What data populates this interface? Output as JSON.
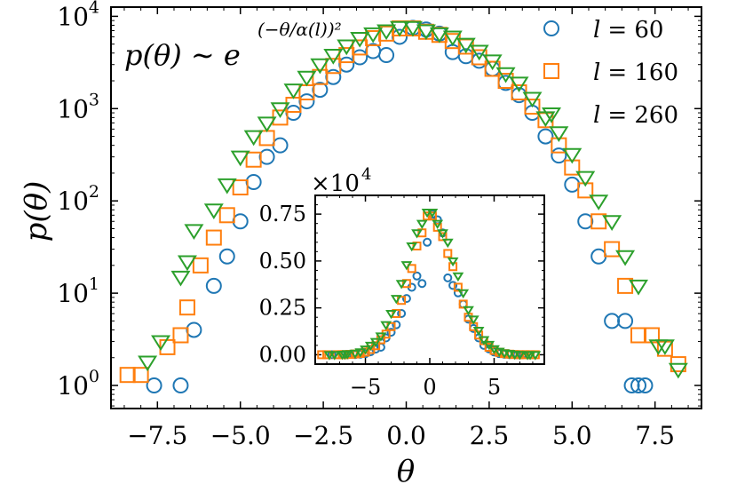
{
  "chart_data": {
    "main": {
      "type": "scatter",
      "xlabel": "θ",
      "ylabel": "p(θ)",
      "yscale": "log",
      "xlim": [
        -8.9,
        8.9
      ],
      "ylim_log10": [
        -0.25,
        4.1
      ],
      "xticks": [
        -7.5,
        -5.0,
        -2.5,
        0.0,
        2.5,
        5.0,
        7.5
      ],
      "xtick_labels": [
        "−7.5",
        "−5.0",
        "−2.5",
        "0.0",
        "2.5",
        "5.0",
        "7.5"
      ],
      "yticks": [
        {
          "mant": "10",
          "exp": "0",
          "val": 1
        },
        {
          "mant": "10",
          "exp": "1",
          "val": 10
        },
        {
          "mant": "10",
          "exp": "2",
          "val": 100
        },
        {
          "mant": "10",
          "exp": "3",
          "val": 1000
        },
        {
          "mant": "10",
          "exp": "4",
          "val": 10000
        }
      ],
      "annotation": {
        "lhs": "p(θ) ∼ e",
        "exponent": "(−θ/α(l))²"
      },
      "legend_position": "top-right",
      "series": [
        {
          "name": "l = 60",
          "label_lhs": "l",
          "label_rhs": "= 60",
          "marker": "circle",
          "color": "#1f77b4",
          "points": [
            [
              -7.6,
              1
            ],
            [
              -6.8,
              1
            ],
            [
              -6.4,
              4
            ],
            [
              -5.8,
              12
            ],
            [
              -5.4,
              25
            ],
            [
              -5.0,
              60
            ],
            [
              -4.6,
              160
            ],
            [
              -4.2,
              300
            ],
            [
              -3.8,
              400
            ],
            [
              -3.4,
              900
            ],
            [
              -3.0,
              1200
            ],
            [
              -2.6,
              1600
            ],
            [
              -2.2,
              2200
            ],
            [
              -1.8,
              3000
            ],
            [
              -1.4,
              3600
            ],
            [
              -1.0,
              4200
            ],
            [
              -0.6,
              3800
            ],
            [
              -0.2,
              6000
            ],
            [
              0.2,
              7500
            ],
            [
              0.6,
              7200
            ],
            [
              1.0,
              6500
            ],
            [
              1.4,
              4100
            ],
            [
              1.8,
              3700
            ],
            [
              2.2,
              3300
            ],
            [
              2.6,
              2700
            ],
            [
              3.0,
              1900
            ],
            [
              3.4,
              1400
            ],
            [
              3.8,
              900
            ],
            [
              4.2,
              500
            ],
            [
              4.6,
              310
            ],
            [
              5.0,
              150
            ],
            [
              5.4,
              60
            ],
            [
              5.8,
              25
            ],
            [
              6.2,
              5
            ],
            [
              6.6,
              5
            ],
            [
              6.8,
              1
            ],
            [
              7.0,
              1
            ],
            [
              7.2,
              1
            ]
          ]
        },
        {
          "name": "l = 160",
          "label_lhs": "l",
          "label_rhs": "= 160",
          "marker": "square",
          "color": "#ff7f0e",
          "points": [
            [
              -8.4,
              1.3
            ],
            [
              -8.0,
              1.3
            ],
            [
              -7.2,
              2.6
            ],
            [
              -6.8,
              3.5
            ],
            [
              -6.6,
              7
            ],
            [
              -6.2,
              20
            ],
            [
              -5.8,
              40
            ],
            [
              -5.4,
              70
            ],
            [
              -5.0,
              140
            ],
            [
              -4.6,
              280
            ],
            [
              -4.2,
              480
            ],
            [
              -3.8,
              800
            ],
            [
              -3.4,
              1100
            ],
            [
              -3.0,
              1500
            ],
            [
              -2.6,
              2200
            ],
            [
              -2.2,
              2900
            ],
            [
              -1.8,
              3800
            ],
            [
              -1.4,
              4600
            ],
            [
              -1.0,
              5800
            ],
            [
              -0.6,
              6500
            ],
            [
              -0.2,
              7400
            ],
            [
              0.2,
              7400
            ],
            [
              0.6,
              6800
            ],
            [
              1.0,
              6300
            ],
            [
              1.4,
              5400
            ],
            [
              1.8,
              4700
            ],
            [
              2.2,
              3600
            ],
            [
              2.6,
              2700
            ],
            [
              3.0,
              2000
            ],
            [
              3.4,
              1500
            ],
            [
              3.8,
              1050
            ],
            [
              4.2,
              750
            ],
            [
              4.6,
              400
            ],
            [
              5.0,
              230
            ],
            [
              5.4,
              130
            ],
            [
              5.8,
              60
            ],
            [
              6.2,
              30
            ],
            [
              6.6,
              12
            ],
            [
              7.0,
              3.5
            ],
            [
              7.4,
              3.5
            ],
            [
              7.8,
              2.5
            ],
            [
              8.2,
              1.7
            ]
          ]
        },
        {
          "name": "l = 260",
          "label_lhs": "l",
          "label_rhs": "= 260",
          "marker": "triangle-down",
          "color": "#2ca02c",
          "points": [
            [
              -7.8,
              1.8
            ],
            [
              -7.4,
              3
            ],
            [
              -6.8,
              15
            ],
            [
              -6.6,
              22
            ],
            [
              -6.4,
              48
            ],
            [
              -5.8,
              80
            ],
            [
              -5.4,
              150
            ],
            [
              -5.0,
              300
            ],
            [
              -4.6,
              500
            ],
            [
              -4.2,
              700
            ],
            [
              -3.8,
              1000
            ],
            [
              -3.4,
              1600
            ],
            [
              -3.0,
              2200
            ],
            [
              -2.6,
              3000
            ],
            [
              -2.2,
              3800
            ],
            [
              -1.8,
              4800
            ],
            [
              -1.4,
              5800
            ],
            [
              -1.0,
              6500
            ],
            [
              -0.6,
              7000
            ],
            [
              -0.2,
              7600
            ],
            [
              0.2,
              7600
            ],
            [
              0.6,
              7000
            ],
            [
              1.0,
              6500
            ],
            [
              1.4,
              6000
            ],
            [
              1.8,
              5000
            ],
            [
              2.2,
              4200
            ],
            [
              2.6,
              3300
            ],
            [
              3.0,
              2400
            ],
            [
              3.4,
              1900
            ],
            [
              3.8,
              1300
            ],
            [
              4.2,
              800
            ],
            [
              4.6,
              550
            ],
            [
              5.0,
              320
            ],
            [
              5.4,
              180
            ],
            [
              5.8,
              100
            ],
            [
              6.2,
              60
            ],
            [
              6.6,
              25
            ],
            [
              7.0,
              12
            ],
            [
              7.6,
              2.7
            ],
            [
              7.8,
              2.7
            ],
            [
              8.2,
              1.5
            ]
          ]
        }
      ]
    },
    "inset": {
      "type": "scatter",
      "multiplier": {
        "base": "×10",
        "exp": "4"
      },
      "xlim": [
        -8.9,
        8.9
      ],
      "ylim": [
        -0.05,
        0.85
      ],
      "xticks": [
        -5,
        0,
        5
      ],
      "xtick_labels": [
        "−5",
        "0",
        "5"
      ],
      "yticks": [
        0.0,
        0.25,
        0.5,
        0.75
      ],
      "ytick_labels": [
        "0.00",
        "0.25",
        "0.50",
        "0.75"
      ],
      "note": "same series as main plot, linear y-axis in units of 10^4"
    }
  }
}
